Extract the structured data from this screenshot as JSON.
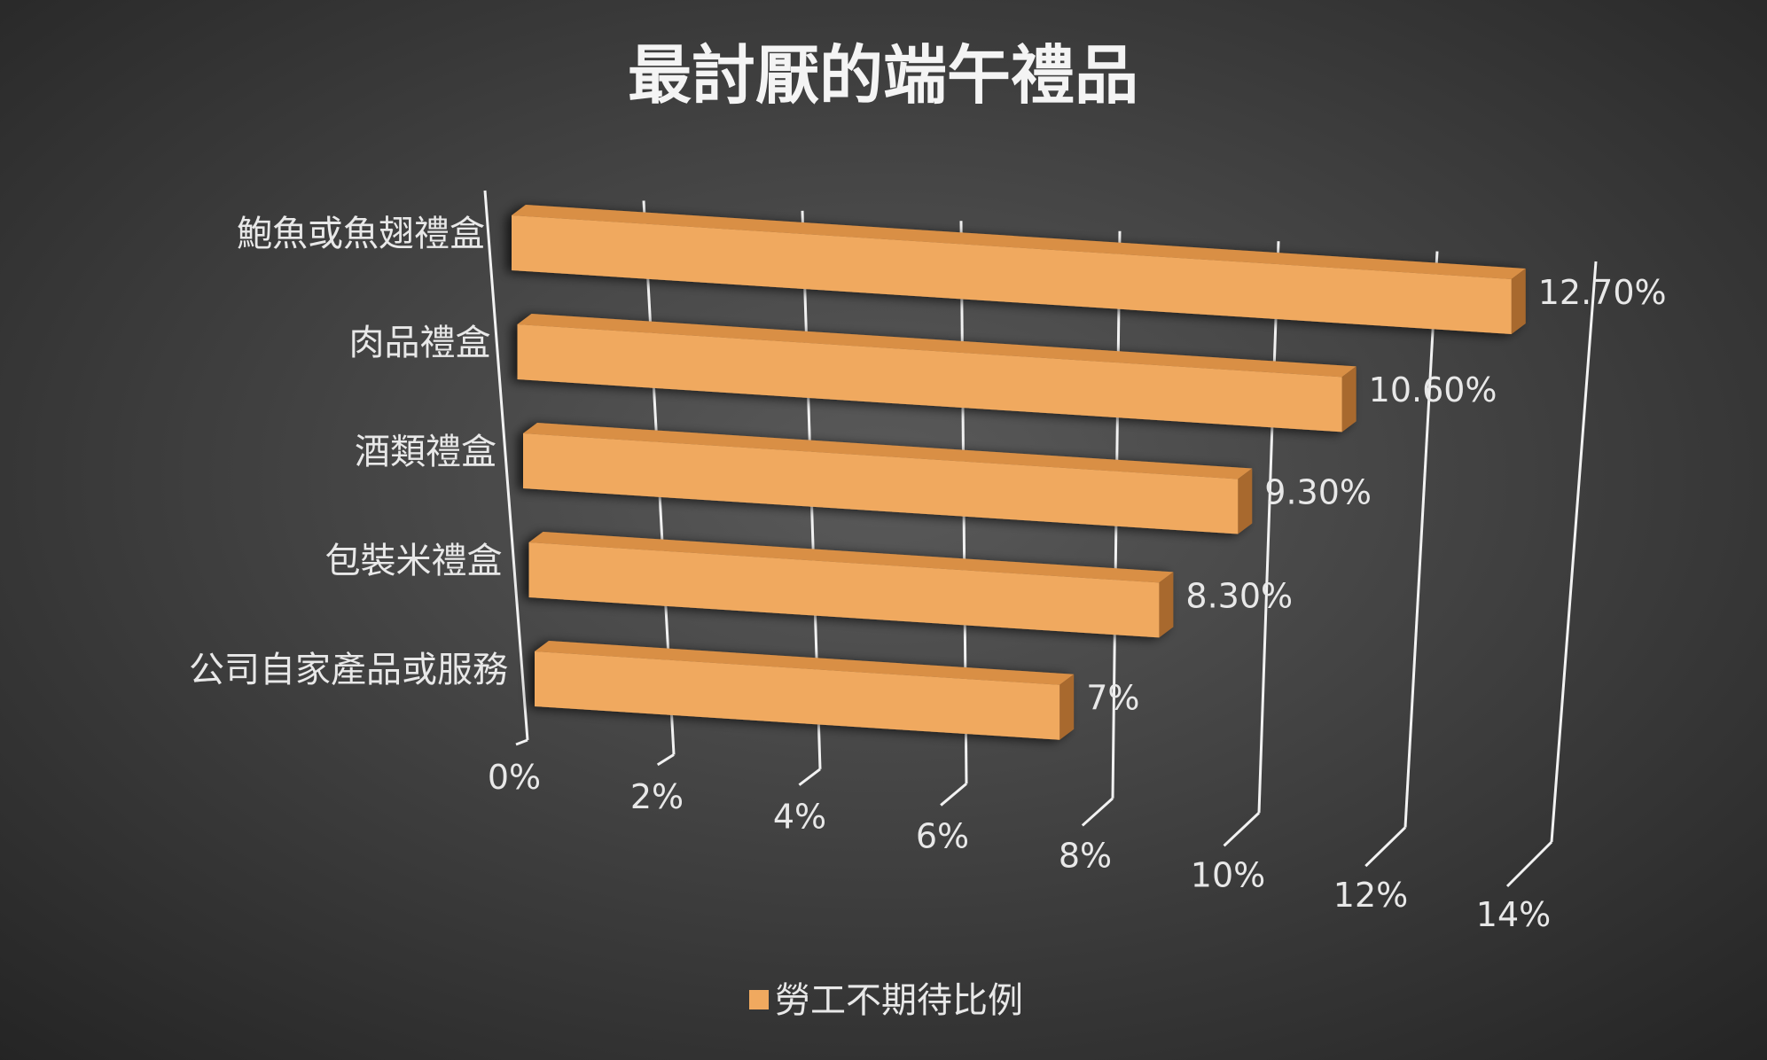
{
  "colors": {
    "bar_front": "#f0a95f",
    "bar_top": "#d98f45",
    "bar_side": "#a8692e",
    "grid": "#f2f2f2",
    "text": "#e8e8e8",
    "bg_center": "#5a5a5a",
    "bg_edge": "#242424"
  },
  "chart_data": {
    "type": "bar",
    "orientation": "horizontal",
    "style": "3d",
    "title": "最討厭的端午禮品",
    "categories": [
      "鮑魚或魚翅禮盒",
      "肉品禮盒",
      "酒類禮盒",
      "包裝米禮盒",
      "公司自家產品或服務"
    ],
    "series": [
      {
        "name": "勞工不期待比例",
        "values": [
          12.7,
          10.6,
          9.3,
          8.3,
          7
        ],
        "labels": [
          "12.70%",
          "10.60%",
          "9.30%",
          "8.30%",
          "7%"
        ]
      }
    ],
    "xlim": [
      0,
      14
    ],
    "xticks": [
      0,
      2,
      4,
      6,
      8,
      10,
      12,
      14
    ],
    "xtick_labels": [
      "0%",
      "2%",
      "4%",
      "6%",
      "8%",
      "10%",
      "12%",
      "14%"
    ],
    "grid": true,
    "legend": "bottom"
  }
}
